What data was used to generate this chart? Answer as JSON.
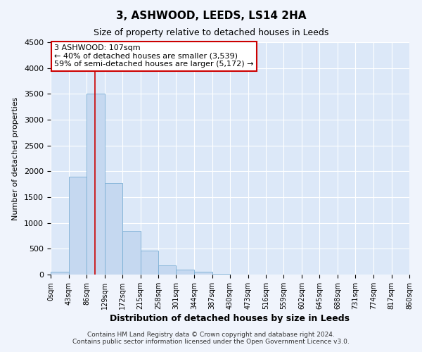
{
  "title": "3, ASHWOOD, LEEDS, LS14 2HA",
  "subtitle": "Size of property relative to detached houses in Leeds",
  "xlabel": "Distribution of detached houses by size in Leeds",
  "ylabel": "Number of detached properties",
  "bar_color": "#c5d8f0",
  "bar_edge_color": "#7aaed4",
  "bin_edges": [
    0,
    43,
    86,
    129,
    172,
    215,
    258,
    301,
    344,
    387,
    430,
    473,
    516,
    559,
    602,
    645,
    688,
    731,
    774,
    817,
    860
  ],
  "bar_heights": [
    50,
    1900,
    3500,
    1775,
    850,
    460,
    175,
    90,
    50,
    20,
    5,
    2,
    0,
    0,
    0,
    0,
    0,
    0,
    0,
    0
  ],
  "tick_labels": [
    "0sqm",
    "43sqm",
    "86sqm",
    "129sqm",
    "172sqm",
    "215sqm",
    "258sqm",
    "301sqm",
    "344sqm",
    "387sqm",
    "430sqm",
    "473sqm",
    "516sqm",
    "559sqm",
    "602sqm",
    "645sqm",
    "688sqm",
    "731sqm",
    "774sqm",
    "817sqm",
    "860sqm"
  ],
  "ylim": [
    0,
    4500
  ],
  "yticks": [
    0,
    500,
    1000,
    1500,
    2000,
    2500,
    3000,
    3500,
    4000,
    4500
  ],
  "vline_x": 107,
  "annotation_title": "3 ASHWOOD: 107sqm",
  "annotation_line1": "← 40% of detached houses are smaller (3,539)",
  "annotation_line2": "59% of semi-detached houses are larger (5,172) →",
  "annotation_box_facecolor": "#ffffff",
  "annotation_box_edgecolor": "#cc0000",
  "vline_color": "#cc0000",
  "footer_line1": "Contains HM Land Registry data © Crown copyright and database right 2024.",
  "footer_line2": "Contains public sector information licensed under the Open Government Licence v3.0.",
  "fig_bg_color": "#f0f4fc",
  "plot_bg_color": "#dce8f8",
  "grid_color": "#ffffff",
  "title_fontsize": 11,
  "subtitle_fontsize": 9,
  "xlabel_fontsize": 9,
  "ylabel_fontsize": 8,
  "tick_fontsize": 7,
  "annotation_fontsize": 8,
  "footer_fontsize": 6.5
}
